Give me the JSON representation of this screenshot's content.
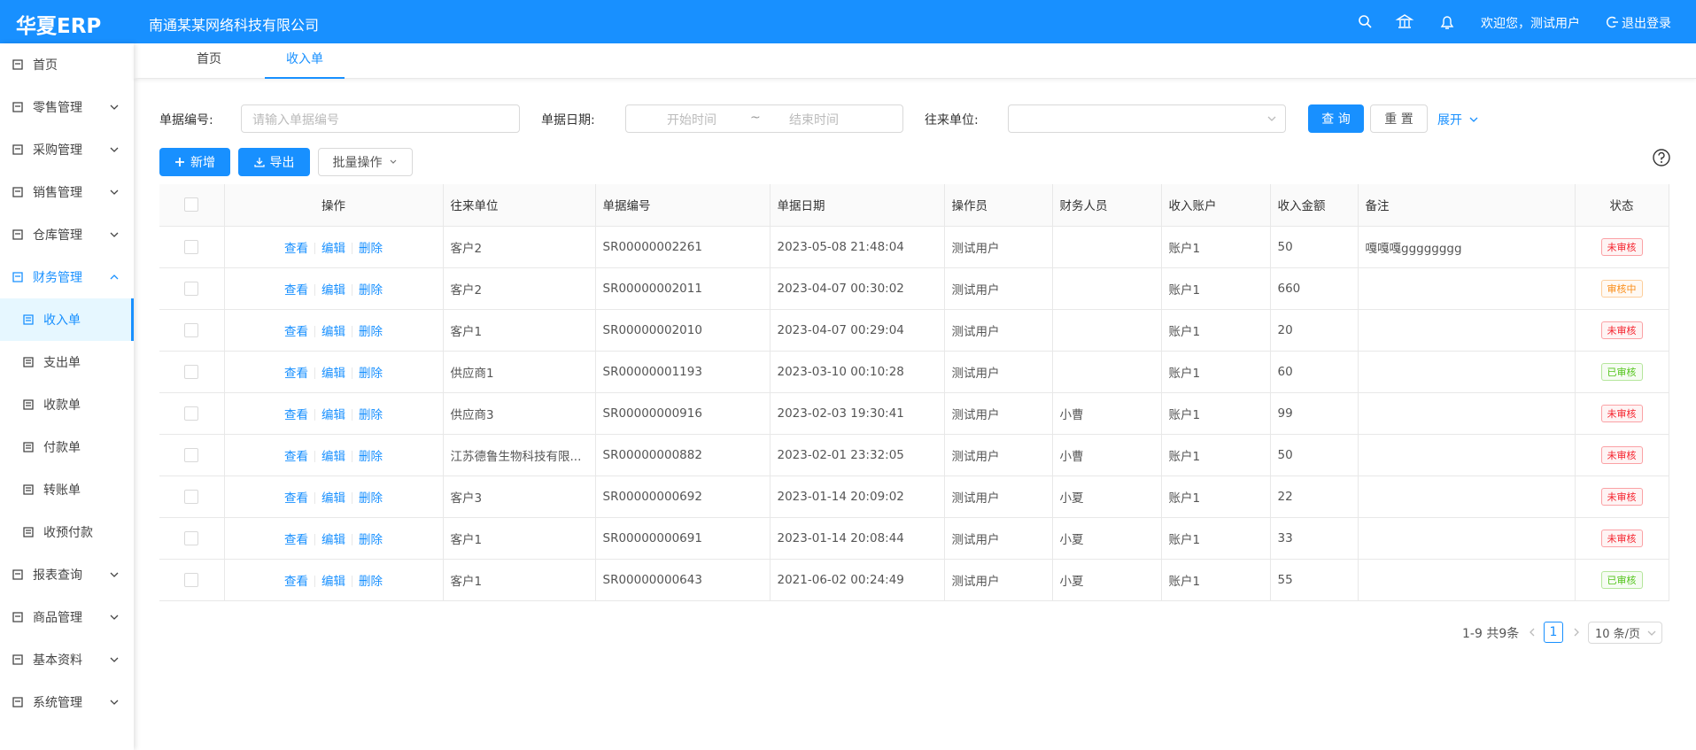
{
  "header": {
    "logo": "华夏ERP",
    "company": "南通某某网络科技有限公司",
    "welcome": "欢迎您，测试用户",
    "logout": "退出登录"
  },
  "sidebar": {
    "items": [
      {
        "label": "首页"
      },
      {
        "label": "零售管理",
        "expandable": true
      },
      {
        "label": "采购管理",
        "expandable": true
      },
      {
        "label": "销售管理",
        "expandable": true
      },
      {
        "label": "仓库管理",
        "expandable": true
      },
      {
        "label": "财务管理",
        "expandable": true,
        "expanded": true,
        "children": [
          {
            "label": "收入单",
            "active": true
          },
          {
            "label": "支出单"
          },
          {
            "label": "收款单"
          },
          {
            "label": "付款单"
          },
          {
            "label": "转账单"
          },
          {
            "label": "收预付款"
          }
        ]
      },
      {
        "label": "报表查询",
        "expandable": true
      },
      {
        "label": "商品管理",
        "expandable": true
      },
      {
        "label": "基本资料",
        "expandable": true
      },
      {
        "label": "系统管理",
        "expandable": true
      }
    ]
  },
  "tabs": [
    {
      "label": "首页"
    },
    {
      "label": "收入单",
      "active": true
    }
  ],
  "search": {
    "number_label": "单据编号:",
    "number_placeholder": "请输入单据编号",
    "date_label": "单据日期:",
    "date_start": "开始时间",
    "date_sep": "~",
    "date_end": "结束时间",
    "partner_label": "往来单位:",
    "query": "查 询",
    "reset": "重 置",
    "expand": "展开"
  },
  "toolbar": {
    "add": "新增",
    "export": "导出",
    "batch": "批量操作"
  },
  "table": {
    "columns": [
      "操作",
      "往来单位",
      "单据编号",
      "单据日期",
      "操作员",
      "财务人员",
      "收入账户",
      "收入金额",
      "备注",
      "状态"
    ],
    "actions": [
      "查看",
      "编辑",
      "删除"
    ],
    "rows": [
      {
        "partner": "客户2",
        "number": "SR00000002261",
        "date": "2023-05-08 21:48:04",
        "operator": "测试用户",
        "finance": null,
        "account": "账户1",
        "amount": 50,
        "remark": "嘎嘎嘎gggggggg",
        "status": "未审核",
        "status_color": "#f5222d"
      },
      {
        "partner": "客户2",
        "number": "SR00000002011",
        "date": "2023-04-07 00:30:02",
        "operator": "测试用户",
        "finance": null,
        "account": "账户1",
        "amount": 660,
        "remark": null,
        "status": "审核中",
        "status_color": "#fa8c16"
      },
      {
        "partner": "客户1",
        "number": "SR00000002010",
        "date": "2023-04-07 00:29:04",
        "operator": "测试用户",
        "finance": null,
        "account": "账户1",
        "amount": 20,
        "remark": null,
        "status": "未审核",
        "status_color": "#f5222d"
      },
      {
        "partner": "供应商1",
        "number": "SR00000001193",
        "date": "2023-03-10 00:10:28",
        "operator": "测试用户",
        "finance": null,
        "account": "账户1",
        "amount": 60,
        "remark": null,
        "status": "已审核",
        "status_color": "#52c41a"
      },
      {
        "partner": "供应商3",
        "number": "SR00000000916",
        "date": "2023-02-03 19:30:41",
        "operator": "测试用户",
        "finance": "小曹",
        "account": "账户1",
        "amount": 99,
        "remark": null,
        "status": "未审核",
        "status_color": "#f5222d"
      },
      {
        "partner": "江苏德鲁生物科技有限...",
        "number": "SR00000000882",
        "date": "2023-02-01 23:32:05",
        "operator": "测试用户",
        "finance": "小曹",
        "account": "账户1",
        "amount": 50,
        "remark": null,
        "status": "未审核",
        "status_color": "#f5222d"
      },
      {
        "partner": "客户3",
        "number": "SR00000000692",
        "date": "2023-01-14 20:09:02",
        "operator": "测试用户",
        "finance": "小夏",
        "account": "账户1",
        "amount": 22,
        "remark": null,
        "status": "未审核",
        "status_color": "#f5222d"
      },
      {
        "partner": "客户1",
        "number": "SR00000000691",
        "date": "2023-01-14 20:08:44",
        "operator": "测试用户",
        "finance": "小夏",
        "account": "账户1",
        "amount": 33,
        "remark": null,
        "status": "未审核",
        "status_color": "#f5222d"
      },
      {
        "partner": "客户1",
        "number": "SR00000000643",
        "date": "2021-06-02 00:24:49",
        "operator": "测试用户",
        "finance": "小夏",
        "account": "账户1",
        "amount": 55,
        "remark": null,
        "status": "已审核",
        "status_color": "#52c41a"
      }
    ]
  },
  "pagination": {
    "summary": "1-9 共9条",
    "page": 1,
    "page_size": "10 条/页"
  }
}
